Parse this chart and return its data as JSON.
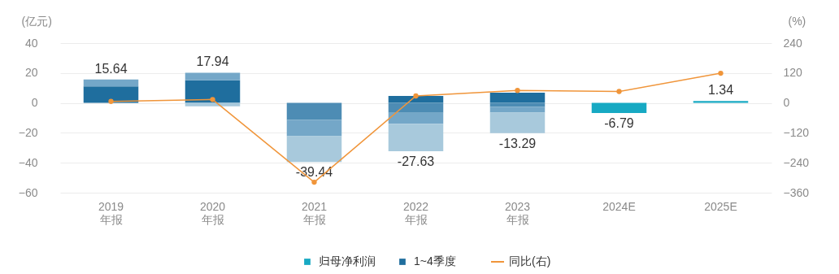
{
  "chart_data": {
    "type": "bar",
    "stacked": true,
    "ylabel": "(亿元)",
    "y2label": "(%)",
    "categories": [
      "2019\n年报",
      "2020\n年报",
      "2021\n年报",
      "2022\n年报",
      "2023\n年报",
      "2024E",
      "2025E"
    ],
    "series": [
      {
        "name": "归母净利润",
        "color": "#17a9c3",
        "values": [
          null,
          null,
          null,
          null,
          null,
          -6.79,
          1.34
        ]
      },
      {
        "name": "1~4季度",
        "color": "#1f6e9e",
        "values": [
          11.1,
          15.2,
          null,
          4.7,
          6.9,
          null,
          null
        ]
      },
      {
        "color": "#4d8cb4",
        "values": [
          null,
          null,
          -11.3,
          -6.6,
          -2.6,
          null,
          null
        ]
      },
      {
        "color": "#74a7c8",
        "values": [
          4.54,
          4.97,
          -10.9,
          -7.4,
          -3.8,
          null,
          null
        ]
      },
      {
        "color": "#a8c9dc",
        "values": [
          null,
          -2.23,
          -17.24,
          -18.33,
          -13.79,
          null,
          null
        ]
      },
      {
        "name": "同比(右)",
        "type": "line",
        "axis": "y2",
        "color": "#f0953a",
        "values": [
          6,
          14,
          -318,
          28,
          50,
          46,
          119
        ]
      }
    ],
    "totals": [
      "15.64",
      "17.94",
      "-39.44",
      "-27.63",
      "-13.29",
      "-6.79",
      "1.34"
    ],
    "ylim": [
      -60,
      40
    ],
    "yticks": [
      -60,
      -40,
      -20,
      0,
      20,
      40
    ],
    "y2lim": [
      -360,
      240
    ],
    "y2ticks": [
      -360,
      -240,
      -120,
      0,
      120,
      240
    ],
    "grid": "y",
    "legend": "bottom",
    "marker": "circle"
  }
}
